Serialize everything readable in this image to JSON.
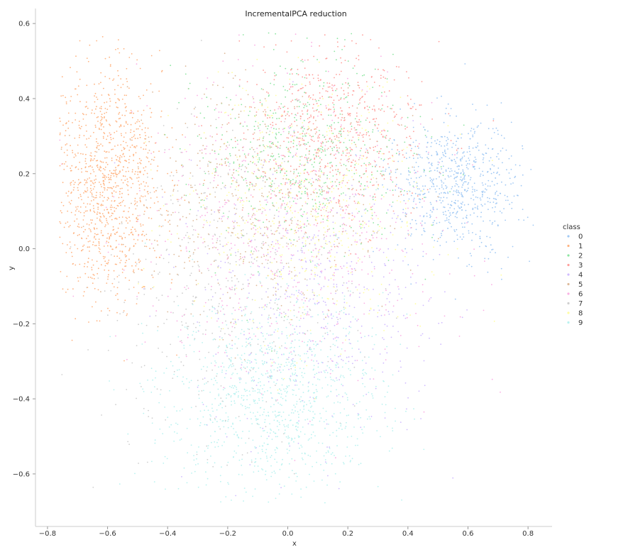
{
  "chart_data": {
    "type": "scatter",
    "title": "IncrementalPCA reduction",
    "xlabel": "x",
    "ylabel": "y",
    "xlim": [
      -0.84,
      0.88
    ],
    "ylim": [
      -0.74,
      0.64
    ],
    "x_ticks": [
      -0.8,
      -0.6,
      -0.4,
      -0.2,
      0.0,
      0.2,
      0.4,
      0.6,
      0.8
    ],
    "x_tick_labels": [
      "−0.8",
      "−0.6",
      "−0.4",
      "−0.2",
      "0.0",
      "0.2",
      "0.4",
      "0.6",
      "0.8"
    ],
    "y_ticks": [
      -0.6,
      -0.4,
      -0.2,
      0.0,
      0.2,
      0.4,
      0.6
    ],
    "y_tick_labels": [
      "−0.6",
      "−0.4",
      "−0.2",
      "0.0",
      "0.2",
      "0.4",
      "0.6"
    ],
    "grid": false,
    "legend_placement": "right",
    "legend_title": "class",
    "series": [
      {
        "name": "0",
        "color": "#a1c9f4",
        "clusters": [
          {
            "x": 0.55,
            "y": 0.17,
            "sx": 0.11,
            "sy": 0.09
          }
        ],
        "n": 700
      },
      {
        "name": "1",
        "color": "#ffb482",
        "clusters": [
          {
            "x": -0.6,
            "y": 0.17,
            "sx": 0.09,
            "sy": 0.15
          }
        ],
        "n": 1100
      },
      {
        "name": "2",
        "color": "#8de5a1",
        "clusters": [
          {
            "x": 0.05,
            "y": 0.25,
            "sx": 0.18,
            "sy": 0.13
          }
        ],
        "n": 550
      },
      {
        "name": "3",
        "color": "#ff9f9b",
        "clusters": [
          {
            "x": 0.15,
            "y": 0.3,
            "sx": 0.15,
            "sy": 0.12
          }
        ],
        "n": 650
      },
      {
        "name": "4",
        "color": "#d0bbff",
        "clusters": [
          {
            "x": 0.1,
            "y": -0.15,
            "sx": 0.2,
            "sy": 0.18
          }
        ],
        "n": 500
      },
      {
        "name": "5",
        "color": "#debb9b",
        "clusters": [
          {
            "x": -0.1,
            "y": 0.15,
            "sx": 0.22,
            "sy": 0.15
          }
        ],
        "n": 550
      },
      {
        "name": "6",
        "color": "#fab0e4",
        "clusters": [
          {
            "x": 0.0,
            "y": 0.05,
            "sx": 0.25,
            "sy": 0.2
          }
        ],
        "n": 650
      },
      {
        "name": "7",
        "color": "#cfcfcf",
        "clusters": [
          {
            "x": -0.2,
            "y": -0.1,
            "sx": 0.2,
            "sy": 0.2
          }
        ],
        "n": 450
      },
      {
        "name": "8",
        "color": "#fffea3",
        "clusters": [
          {
            "x": 0.05,
            "y": 0.1,
            "sx": 0.2,
            "sy": 0.17
          }
        ],
        "n": 550
      },
      {
        "name": "9",
        "color": "#b9f2f0",
        "clusters": [
          {
            "x": -0.05,
            "y": -0.4,
            "sx": 0.18,
            "sy": 0.13
          }
        ],
        "n": 1100
      }
    ]
  }
}
